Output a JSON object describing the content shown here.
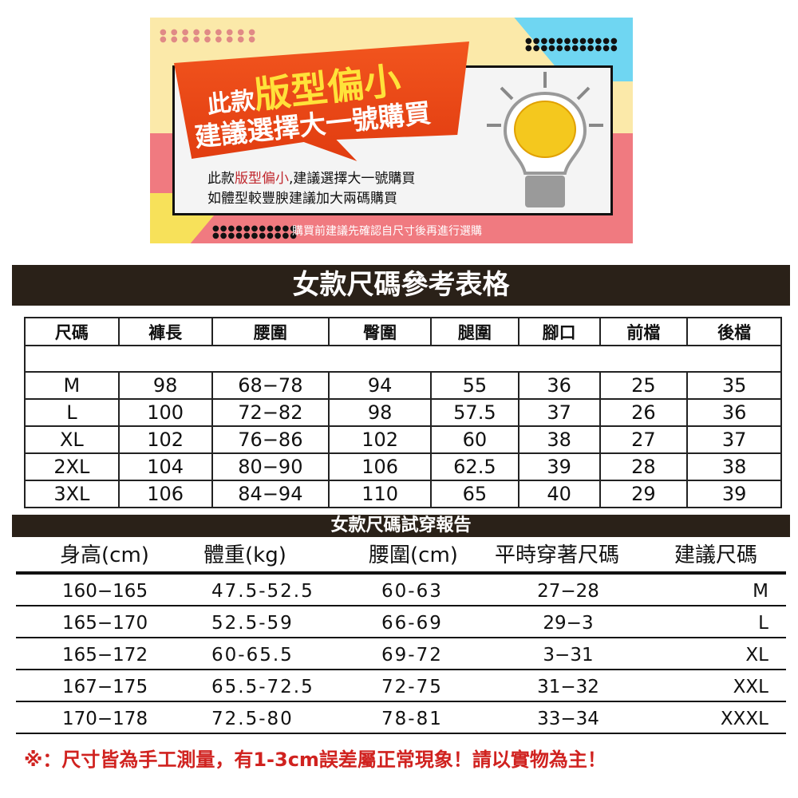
{
  "banner": {
    "headline_prefix": "此款",
    "headline_emphasis": "版型偏小",
    "headline_line2": "建議選擇大一號購買",
    "message_prefix": "此款",
    "message_emphasis": "版型偏小",
    "message_suffix": ",建議選擇大一號購買",
    "message_line2": "如體型較豐腴建議加大兩碼購買",
    "footer": "購買前建議先確認自尺寸後再進行選購",
    "icon": "lightbulb-brain-icon"
  },
  "size_chart": {
    "title": "女款尺碼參考表格",
    "headers": [
      "尺碼",
      "褲長",
      "腰圍",
      "臀圍",
      "腿圍",
      "腳口",
      "前檔",
      "後檔"
    ],
    "rows": [
      [
        "M",
        "98",
        "68−78",
        "94",
        "55",
        "36",
        "25",
        "35"
      ],
      [
        "L",
        "100",
        "72−82",
        "98",
        "57.5",
        "37",
        "26",
        "36"
      ],
      [
        "XL",
        "102",
        "76−86",
        "102",
        "60",
        "38",
        "27",
        "37"
      ],
      [
        "2XL",
        "104",
        "80−90",
        "106",
        "62.5",
        "39",
        "28",
        "38"
      ],
      [
        "3XL",
        "106",
        "84−94",
        "110",
        "65",
        "40",
        "29",
        "39"
      ]
    ]
  },
  "fit_report": {
    "title": "女款尺碼試穿報告",
    "headers": [
      "身高(cm)",
      "體重(kg)",
      "腰圍(cm)",
      "平時穿著尺碼",
      "建議尺碼"
    ],
    "rows": [
      [
        "160−165",
        "47.5-52.5",
        "60-63",
        "27−28",
        "M"
      ],
      [
        "165−170",
        "52.5-59",
        "66-69",
        "29−3",
        "L"
      ],
      [
        "165−172",
        "60-65.5",
        "69-72",
        "3−31",
        "XL"
      ],
      [
        "167−175",
        "65.5-72.5",
        "72-75",
        "31−32",
        "XXL"
      ],
      [
        "170−178",
        "72.5-80",
        "78-81",
        "33−34",
        "XXXL"
      ]
    ]
  },
  "note": "※：尺寸皆為手工測量，有1-3cm誤差屬正常現象！請以實物為主！",
  "colors": {
    "bar": "#2a2118",
    "accent_red": "#d0221f",
    "ribbon": "#e5461a"
  }
}
